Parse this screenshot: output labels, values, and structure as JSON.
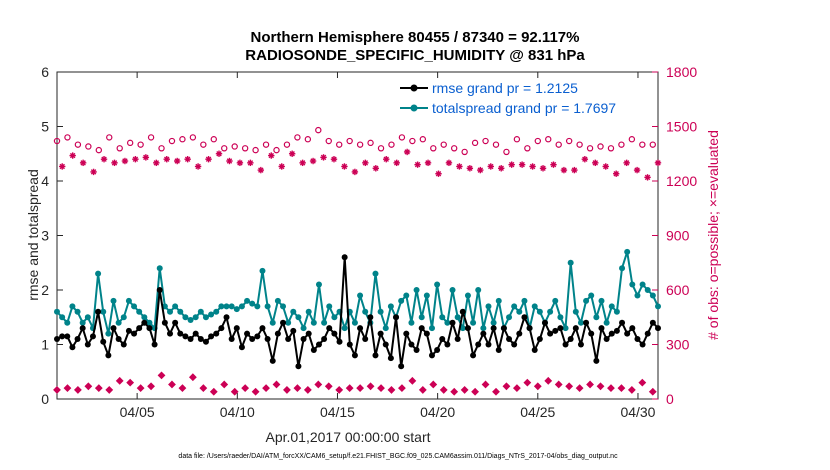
{
  "colors": {
    "rmse": "#000000",
    "spread": "#00838a",
    "obs": "#cc0055",
    "legend_text": "#0a5fd0",
    "axis_left": "#262626",
    "axis_right": "#cc0055"
  },
  "chart_data": {
    "type": "line",
    "title_line1": "Northern Hemisphere 80455 / 87340 = 92.117%",
    "title_line2": "RADIOSONDE_SPECIFIC_HUMIDITY @ 831 hPa",
    "xlabel": "Apr.01,2017 00:00:00 start",
    "ylabel_left": "rmse and totalspread",
    "ylabel_right": "# of obs: o=possible; ×=evaluated",
    "xlim": [
      0,
      30
    ],
    "ylim_left": [
      0,
      6
    ],
    "ylim_right": [
      0,
      1800
    ],
    "x_ticks": [
      {
        "value": 4,
        "label": "04/05"
      },
      {
        "value": 9,
        "label": "04/10"
      },
      {
        "value": 14,
        "label": "04/15"
      },
      {
        "value": 19,
        "label": "04/20"
      },
      {
        "value": 24,
        "label": "04/25"
      },
      {
        "value": 29,
        "label": "04/30"
      }
    ],
    "y_ticks_left": [
      "0",
      "1",
      "2",
      "3",
      "4",
      "5",
      "6"
    ],
    "y_ticks_right": [
      "0",
      "300",
      "600",
      "900",
      "1200",
      "1500",
      "1800"
    ],
    "legend": [
      "rmse grand pr = 1.2125",
      "totalspread grand pr = 1.7697"
    ],
    "footer": "data file: /Users/raeder/DAI/ATM_forcXX/CAM6_setup/f.e21.FHIST_BGC.f09_025.CAM6assim.011/Diags_NTrS_2017-04/obs_diag_output.nc",
    "series": [
      {
        "name": "rmse",
        "values": [
          1.1,
          1.15,
          1.15,
          0.95,
          1.1,
          1.3,
          1.0,
          1.15,
          1.6,
          1.05,
          0.8,
          1.3,
          1.1,
          1.0,
          1.25,
          1.2,
          1.3,
          1.4,
          1.3,
          1.0,
          2.0,
          1.4,
          1.2,
          1.4,
          1.2,
          1.15,
          1.1,
          1.2,
          1.1,
          1.05,
          1.15,
          1.2,
          1.3,
          1.5,
          1.1,
          1.3,
          0.95,
          1.2,
          1.1,
          1.15,
          1.3,
          1.1,
          0.7,
          1.2,
          1.4,
          1.1,
          1.25,
          0.6,
          1.1,
          1.2,
          0.9,
          1.0,
          1.1,
          1.3,
          1.2,
          1.05,
          2.6,
          1.0,
          0.8,
          1.3,
          1.1,
          1.5,
          0.8,
          1.2,
          1.0,
          0.75,
          1.5,
          0.6,
          1.2,
          1.0,
          0.9,
          1.3,
          1.2,
          0.8,
          0.9,
          1.1,
          1.0,
          1.4,
          1.1,
          1.6,
          1.3,
          0.8,
          1.0,
          1.2,
          1.0,
          1.3,
          0.9,
          1.3,
          1.1,
          1.0,
          1.2,
          1.5,
          1.3,
          0.9,
          1.1,
          1.4,
          1.2,
          1.25,
          1.3,
          1.0,
          1.1,
          1.3,
          1.0,
          1.4,
          1.2,
          0.7,
          1.3,
          1.1,
          1.2,
          1.25,
          1.4,
          1.2,
          1.3,
          1.1,
          1.0,
          1.2,
          1.4,
          1.3
        ],
        "values_note": "approximate, sampled every quarter day"
      },
      {
        "name": "totalspread",
        "values": [
          1.6,
          1.5,
          1.4,
          1.7,
          1.6,
          1.4,
          1.5,
          1.3,
          2.3,
          1.6,
          1.2,
          1.8,
          1.4,
          1.5,
          1.8,
          1.7,
          1.6,
          1.5,
          1.4,
          1.3,
          2.4,
          1.7,
          1.6,
          1.7,
          1.6,
          1.5,
          1.45,
          1.5,
          1.6,
          1.5,
          1.55,
          1.6,
          1.7,
          1.7,
          1.7,
          1.65,
          1.7,
          1.8,
          1.75,
          1.7,
          2.35,
          1.7,
          1.4,
          1.8,
          1.7,
          1.4,
          1.6,
          1.5,
          1.3,
          1.6,
          1.4,
          2.1,
          1.4,
          1.7,
          1.5,
          1.6,
          1.3,
          1.6,
          1.4,
          1.9,
          1.6,
          1.4,
          2.3,
          1.6,
          1.3,
          1.7,
          1.5,
          1.8,
          1.9,
          1.4,
          2.0,
          1.5,
          1.9,
          1.3,
          2.1,
          1.5,
          1.4,
          2.0,
          1.5,
          1.3,
          1.9,
          1.4,
          2.0,
          1.3,
          1.7,
          1.4,
          1.8,
          1.3,
          1.5,
          1.7,
          1.6,
          1.8,
          1.3,
          1.7,
          1.6,
          1.4,
          1.6,
          1.8,
          1.5,
          1.3,
          2.5,
          1.6,
          1.4,
          1.8,
          1.9,
          1.5,
          1.8,
          1.4,
          1.7,
          1.6,
          2.4,
          2.7,
          2.1,
          1.9,
          2.1,
          2.0,
          1.9,
          1.7
        ],
        "values_note": "approximate, sampled every quarter day"
      },
      {
        "name": "obs_possible",
        "values": [
          1420,
          1380,
          1440,
          1460,
          1400,
          1450,
          1390,
          1380,
          1370,
          1410,
          1440,
          1400,
          1380,
          1420,
          1410,
          1420,
          1400,
          1430,
          1440,
          1390,
          1380,
          1400,
          1420,
          1480,
          1430,
          1440,
          1440,
          1390,
          1400,
          1420,
          1430,
          1450,
          1380,
          1420,
          1390,
          1400,
          1380,
          1410,
          1370,
          1380,
          1400,
          1440,
          1370,
          1390,
          1400,
          1490,
          1440,
          1420,
          1430,
          1410,
          1480,
          1440,
          1420,
          1430,
          1400,
          1390,
          1420,
          1380,
          1400,
          1420,
          1410,
          1390,
          1380,
          1430,
          1400,
          1410,
          1440,
          1480,
          1420,
          1400,
          1430,
          1420,
          1380,
          1400,
          1400,
          1420,
          1380,
          1400,
          1360,
          1400,
          1410,
          1380,
          1420,
          1390,
          1400,
          1380,
          1360,
          1400,
          1430,
          1400,
          1380,
          1400,
          1420,
          1390,
          1430,
          1410,
          1400,
          1380,
          1420,
          1380,
          1400,
          1440,
          1380,
          1420,
          1390,
          1400,
          1380,
          1360,
          1400,
          1420,
          1430,
          1380,
          1400,
          1360,
          1400,
          1430
        ],
        "values_note": "approximate, sampled every quarter day"
      },
      {
        "name": "obs_evaluated",
        "values": [
          1300,
          1280,
          1330,
          1340,
          1260,
          1300,
          1210,
          1250,
          1300,
          1320,
          1330,
          1300,
          1290,
          1310,
          1300,
          1320,
          1300,
          1330,
          1340,
          1300,
          1260,
          1320,
          1280,
          1310,
          1320,
          1320,
          1300,
          1280,
          1310,
          1320,
          1340,
          1350,
          1260,
          1310,
          1280,
          1300,
          1250,
          1300,
          1240,
          1260,
          1310,
          1340,
          1250,
          1280,
          1300,
          1350,
          1330,
          1300,
          1320,
          1310,
          1350,
          1330,
          1300,
          1320,
          1300,
          1280,
          1310,
          1250,
          1290,
          1300,
          1290,
          1270,
          1260,
          1320,
          1290,
          1300,
          1330,
          1360,
          1310,
          1290,
          1320,
          1300,
          1220,
          1240,
          1230,
          1300,
          1260,
          1280,
          1220,
          1270,
          1290,
          1260,
          1300,
          1280,
          1290,
          1270,
          1250,
          1290,
          1320,
          1290,
          1270,
          1280,
          1300,
          1270,
          1310,
          1290,
          1280,
          1260,
          1300,
          1260,
          1280,
          1320,
          1260,
          1300,
          1270,
          1280,
          1260,
          1240,
          1280,
          1300,
          1310,
          1260,
          1280,
          1220,
          1280,
          1300
        ],
        "values_note": "approximate, sampled every quarter day"
      },
      {
        "name": "obs_low",
        "values": [
          50,
          40,
          60,
          30,
          50,
          40,
          70,
          40,
          60,
          90,
          50,
          80,
          100,
          60,
          90,
          80,
          60,
          110,
          70,
          90,
          130,
          100,
          80,
          110,
          60,
          90,
          120,
          70,
          60,
          50,
          40,
          60,
          80,
          50,
          40,
          70,
          60,
          50,
          40,
          70,
          60,
          50,
          80,
          40,
          50,
          90,
          60,
          70,
          50,
          60,
          80,
          40,
          70,
          60,
          50,
          40,
          60,
          90,
          60,
          40,
          70,
          50,
          60,
          80,
          50,
          40,
          60,
          90,
          100,
          70,
          50,
          60,
          80,
          40,
          50,
          60,
          40,
          70,
          50,
          60,
          40,
          50,
          80,
          60,
          40,
          50,
          70,
          50,
          60,
          80,
          90,
          60,
          70,
          50,
          100,
          120,
          80,
          60,
          70,
          90,
          60,
          50,
          80,
          100,
          70,
          50,
          60,
          80,
          60,
          70,
          50,
          60,
          90,
          70,
          40,
          50
        ],
        "values_note": "approximate, sampled every quarter day"
      }
    ]
  }
}
